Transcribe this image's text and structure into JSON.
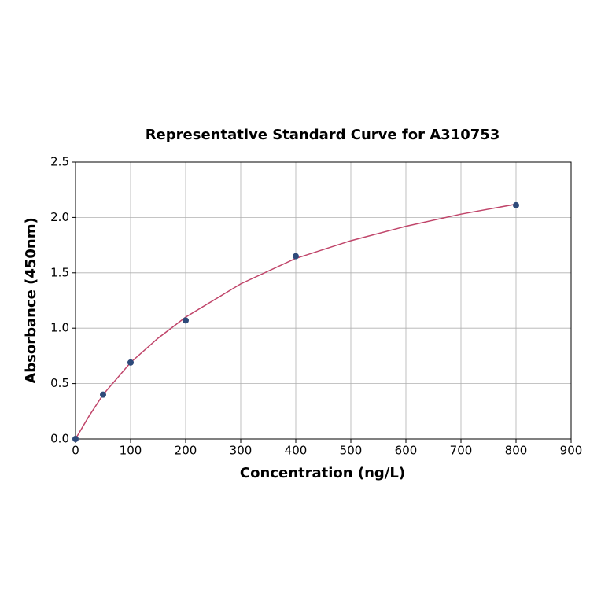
{
  "chart_data": {
    "type": "scatter",
    "title": "Representative Standard Curve for A310753",
    "x_label": "Concentration (ng/L)",
    "y_label": "Absorbance (450nm)",
    "points": {
      "color": "#2e4a7a",
      "x": [
        0,
        50,
        100,
        200,
        400,
        800
      ],
      "y": [
        0.0,
        0.4,
        0.69,
        1.07,
        1.65,
        2.11
      ]
    },
    "curve": {
      "color": "#c0456a",
      "x": [
        0,
        25,
        50,
        100,
        150,
        200,
        300,
        400,
        500,
        600,
        700,
        800
      ],
      "y": [
        0.0,
        0.21,
        0.4,
        0.69,
        0.91,
        1.1,
        1.4,
        1.63,
        1.79,
        1.92,
        2.03,
        2.12
      ]
    },
    "xlim": [
      0,
      900
    ],
    "xticks": [
      0,
      100,
      200,
      300,
      400,
      500,
      600,
      700,
      800,
      900
    ],
    "ylim": [
      0,
      2.5
    ],
    "yticks": [
      {
        "value": 0,
        "label": "0.0"
      },
      0.5,
      {
        "value": 1,
        "label": "1.0"
      },
      1.5,
      {
        "value": 2,
        "label": "2.0"
      },
      2.5
    ],
    "grid": true
  }
}
